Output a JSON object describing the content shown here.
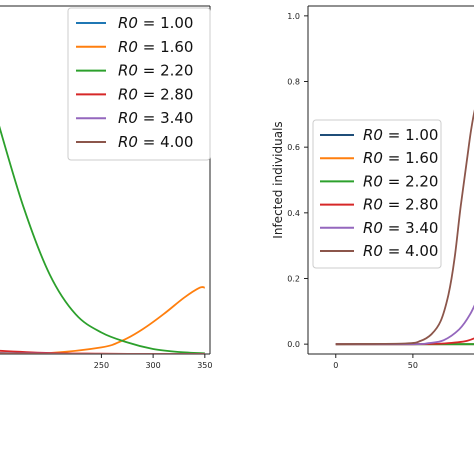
{
  "chart_data": [
    {
      "type": "line",
      "title": "",
      "xlabel": "",
      "ylabel": "",
      "xlim": [
        150,
        355
      ],
      "ylim": [
        0,
        1.05
      ],
      "xticks": [
        "250",
        "300",
        "350"
      ],
      "yticks": [],
      "grid": false,
      "legend_position": "top-right",
      "legend_labels": [
        "R0 = 1.00",
        "R0 = 1.60",
        "R0 = 2.20",
        "R0 = 2.80",
        "R0 = 3.40",
        "R0 = 4.00"
      ],
      "series": [
        {
          "name": "R0 = 1.00",
          "color": "#1f77b4",
          "x": [
            150,
            200,
            250,
            300,
            350
          ],
          "y": [
            0.0,
            0.0,
            0.0,
            0.0,
            0.0
          ]
        },
        {
          "name": "R0 = 1.60",
          "color": "#ff7f0e",
          "x": [
            150,
            200,
            250,
            270,
            290,
            310,
            330,
            345,
            350
          ],
          "y": [
            0.0,
            0.003,
            0.02,
            0.04,
            0.075,
            0.12,
            0.17,
            0.2,
            0.2
          ]
        },
        {
          "name": "R0 = 2.20",
          "color": "#2ca02c",
          "x": [
            150,
            175,
            200,
            225,
            250,
            275,
            300,
            325,
            350
          ],
          "y": [
            0.7,
            0.44,
            0.24,
            0.12,
            0.065,
            0.035,
            0.015,
            0.006,
            0.002
          ]
        },
        {
          "name": "R0 = 2.80",
          "color": "#d62728",
          "x": [
            150,
            200,
            250,
            300,
            350
          ],
          "y": [
            0.01,
            0.003,
            0.001,
            0.0,
            0.0
          ]
        },
        {
          "name": "R0 = 3.40",
          "color": "#9467bd",
          "x": [
            150,
            200,
            250,
            300,
            350
          ],
          "y": [
            0.003,
            0.001,
            0.0,
            0.0,
            0.0
          ]
        },
        {
          "name": "R0 = 4.00",
          "color": "#8c564b",
          "x": [
            150,
            200,
            250,
            300,
            350
          ],
          "y": [
            0.002,
            0.0,
            0.0,
            0.0,
            0.0
          ]
        }
      ]
    },
    {
      "type": "line",
      "title": "",
      "xlabel": "",
      "ylabel": "Infected individuals",
      "xlim": [
        -18,
        100
      ],
      "ylim": [
        -0.03,
        1.03
      ],
      "xticks": [
        "0",
        "50"
      ],
      "yticks": [
        "0.0",
        "0.2",
        "0.4",
        "0.6",
        "0.8",
        "1.0"
      ],
      "grid": false,
      "legend_position": "center-left",
      "legend_labels": [
        "R0 = 1.00",
        "R0 = 1.60",
        "R0 = 2.20",
        "R0 = 2.80",
        "R0 = 3.40",
        "R0 = 4.00"
      ],
      "series": [
        {
          "name": "R0 = 1.00",
          "color": "#1f4e79",
          "x": [
            0,
            50,
            100
          ],
          "y": [
            0.0,
            0.0,
            0.0
          ]
        },
        {
          "name": "R0 = 1.60",
          "color": "#ff7f0e",
          "x": [
            0,
            50,
            100
          ],
          "y": [
            0.0,
            0.0,
            0.0
          ]
        },
        {
          "name": "R0 = 2.20",
          "color": "#2ca02c",
          "x": [
            0,
            50,
            100
          ],
          "y": [
            0.0,
            0.0,
            0.0
          ]
        },
        {
          "name": "R0 = 2.80",
          "color": "#d62728",
          "x": [
            0,
            50,
            70,
            85,
            95,
            100
          ],
          "y": [
            0.0,
            0.0,
            0.002,
            0.01,
            0.03,
            0.05
          ]
        },
        {
          "name": "R0 = 3.40",
          "color": "#9467bd",
          "x": [
            0,
            50,
            60,
            70,
            80,
            87,
            93,
            97,
            100
          ],
          "y": [
            0.0,
            0.0,
            0.003,
            0.012,
            0.045,
            0.09,
            0.15,
            0.2,
            0.22
          ]
        },
        {
          "name": "R0 = 4.00",
          "color": "#8c564b",
          "x": [
            0,
            45,
            55,
            62,
            68,
            73,
            77,
            81,
            85,
            88,
            91,
            95,
            100
          ],
          "y": [
            0.0,
            0.002,
            0.01,
            0.03,
            0.07,
            0.15,
            0.26,
            0.42,
            0.56,
            0.66,
            0.73,
            0.78,
            0.8
          ]
        }
      ]
    }
  ]
}
